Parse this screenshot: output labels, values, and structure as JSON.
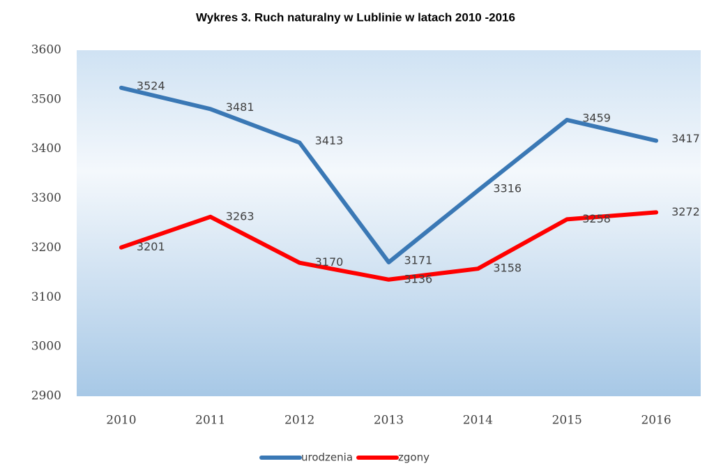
{
  "chart_data": {
    "type": "line",
    "title": "Wykres 3. Ruch naturalny w Lublinie w latach 2010 -2016",
    "categories": [
      "2010",
      "2011",
      "2012",
      "2013",
      "2014",
      "2015",
      "2016"
    ],
    "series": [
      {
        "name": "urodzenia",
        "color": "#3a78b5",
        "values": [
          3524,
          3481,
          3413,
          3171,
          3316,
          3459,
          3417
        ]
      },
      {
        "name": "zgony",
        "color": "#ff0000",
        "values": [
          3201,
          3263,
          3170,
          3136,
          3158,
          3258,
          3272
        ]
      }
    ],
    "ylim": [
      2900,
      3600
    ],
    "yticks": [
      2900,
      3000,
      3100,
      3200,
      3300,
      3400,
      3500,
      3600
    ],
    "legend": "bottom"
  }
}
